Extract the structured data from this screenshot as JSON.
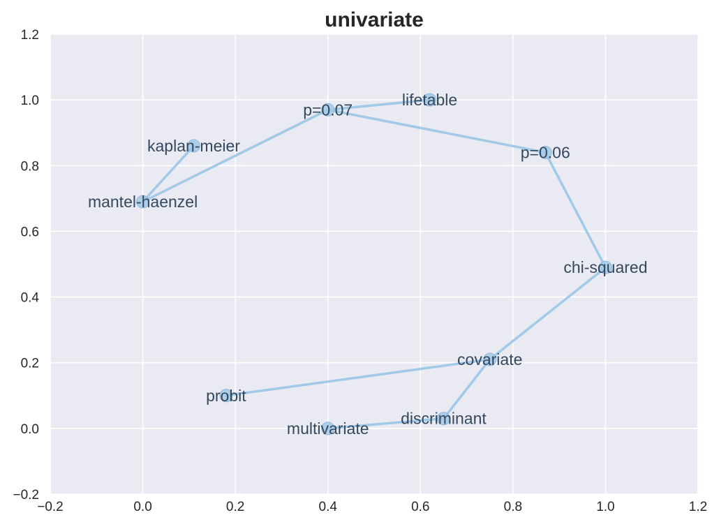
{
  "chart_data": {
    "type": "line",
    "title": "univariate",
    "xlabel": "",
    "ylabel": "",
    "xlim": [
      -0.2,
      1.2
    ],
    "ylim": [
      -0.2,
      1.2
    ],
    "x_ticks": [
      -0.2,
      0.0,
      0.2,
      0.4,
      0.6,
      0.8,
      1.0,
      1.2
    ],
    "y_ticks": [
      -0.2,
      0.0,
      0.2,
      0.4,
      0.6,
      0.8,
      1.0,
      1.2
    ],
    "x_tick_labels": [
      "−0.2",
      "0.0",
      "0.2",
      "0.4",
      "0.6",
      "0.8",
      "1.0",
      "1.2"
    ],
    "y_tick_labels": [
      "−0.2",
      "0.0",
      "0.2",
      "0.4",
      "0.6",
      "0.8",
      "1.0",
      "1.2"
    ],
    "grid": true,
    "background": "#eaeaf2",
    "line_color": "#a1c9e8",
    "marker_color": "#a1c9e8",
    "label_color": "#34495e",
    "points": [
      {
        "label": "probit",
        "x": 0.18,
        "y": 0.1
      },
      {
        "label": "covariate",
        "x": 0.75,
        "y": 0.21
      },
      {
        "label": "discriminant",
        "x": 0.65,
        "y": 0.03
      },
      {
        "label": "multivariate",
        "x": 0.4,
        "y": 0.0
      },
      {
        "label": "chi-squared",
        "x": 1.0,
        "y": 0.49
      },
      {
        "label": "p=0.06",
        "x": 0.87,
        "y": 0.84
      },
      {
        "label": "p=0.07",
        "x": 0.4,
        "y": 0.97
      },
      {
        "label": "lifetable",
        "x": 0.62,
        "y": 1.0
      },
      {
        "label": "kaplan-meier",
        "x": 0.11,
        "y": 0.86
      },
      {
        "label": "mantel-haenzel",
        "x": 0.0,
        "y": 0.69
      }
    ],
    "path_order": [
      "probit",
      "covariate",
      "discriminant",
      "multivariate",
      "discriminant",
      "covariate",
      "chi-squared",
      "p=0.06",
      "p=0.07",
      "lifetable",
      "p=0.07",
      "mantel-haenzel",
      "kaplan-meier"
    ]
  }
}
